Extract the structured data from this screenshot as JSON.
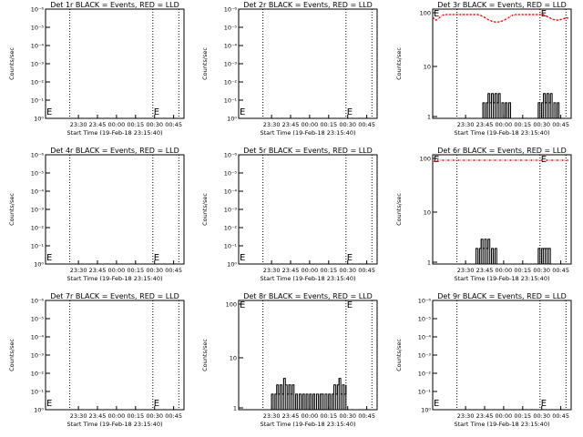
{
  "chart_data": [
    {
      "type": "line",
      "title": "Det 1r BLACK = Events, RED = LLD",
      "xlabel": "Start Time (19-Feb-18 23:15:40)",
      "ylabel": "Counts/sec",
      "yscale": "log",
      "yticks": [
        "10⁰",
        "10⁻¹",
        "10⁻²",
        "10⁻³",
        "10⁻⁴",
        "10⁻⁵",
        "10⁻⁶"
      ],
      "xticks": [
        "23:30",
        "23:45",
        "00:00",
        "00:15",
        "00:30",
        "00:45"
      ],
      "markers": [
        "E",
        "E"
      ],
      "series": []
    },
    {
      "type": "line",
      "title": "Det 2r BLACK = Events, RED = LLD",
      "xlabel": "Start Time (19-Feb-18 23:15:40)",
      "ylabel": "Counts/sec",
      "yscale": "log",
      "yticks": [
        "10⁰",
        "10⁻¹",
        "10⁻²",
        "10⁻³",
        "10⁻⁴",
        "10⁻⁵",
        "10⁻⁶"
      ],
      "xticks": [
        "23:30",
        "23:45",
        "00:00",
        "00:15",
        "00:30",
        "00:45"
      ],
      "markers": [
        "E",
        "E"
      ],
      "series": []
    },
    {
      "type": "line",
      "title": "Det 3r BLACK = Events, RED = LLD",
      "xlabel": "Start Time (19-Feb-18 23:15:40)",
      "ylabel": "Counts/sec",
      "yscale": "log",
      "yticks": [
        "100",
        "10",
        "1"
      ],
      "xticks": [
        "23:30",
        "23:45",
        "00:00",
        "00:15",
        "00:30",
        "00:45"
      ],
      "markers": [
        "E",
        "E"
      ],
      "series": [
        {
          "color": "#ff0000",
          "style": "dotted",
          "points": [
            [
              0.5,
              85
            ],
            [
              2,
              78
            ],
            [
              4,
              88
            ],
            [
              6,
              98
            ],
            [
              8,
              100
            ],
            [
              10,
              100
            ],
            [
              12,
              100
            ],
            [
              14,
              100
            ],
            [
              16,
              100
            ],
            [
              18,
              100
            ],
            [
              20,
              100
            ],
            [
              22,
              100
            ],
            [
              24,
              100
            ],
            [
              26,
              100
            ],
            [
              28,
              95
            ],
            [
              30,
              88
            ],
            [
              32,
              80
            ],
            [
              34,
              75
            ],
            [
              36,
              72
            ],
            [
              38,
              72
            ],
            [
              40,
              75
            ],
            [
              42,
              80
            ],
            [
              44,
              88
            ],
            [
              46,
              96
            ],
            [
              48,
              100
            ],
            [
              50,
              100
            ],
            [
              52,
              100
            ],
            [
              54,
              100
            ],
            [
              56,
              100
            ],
            [
              58,
              100
            ],
            [
              60,
              100
            ],
            [
              62,
              100
            ],
            [
              64,
              100
            ],
            [
              66,
              92
            ],
            [
              68,
              85
            ],
            [
              70,
              80
            ],
            [
              72,
              78
            ],
            [
              74,
              80
            ],
            [
              76,
              84
            ],
            [
              78,
              86
            ]
          ]
        },
        {
          "color": "#000000",
          "style": "solid",
          "points": [
            [
              28,
              1
            ],
            [
              29,
              2
            ],
            [
              30,
              1
            ],
            [
              31,
              2
            ],
            [
              32,
              3
            ],
            [
              33,
              2
            ],
            [
              34,
              3
            ],
            [
              35,
              2
            ],
            [
              36,
              3
            ],
            [
              37,
              2
            ],
            [
              38,
              3
            ],
            [
              39,
              1
            ],
            [
              40,
              2
            ],
            [
              41,
              1
            ],
            [
              42,
              2
            ],
            [
              43,
              1
            ],
            [
              44,
              2
            ],
            [
              45,
              1
            ],
            [
              46,
              1
            ],
            [
              61,
              2
            ],
            [
              62,
              1
            ],
            [
              63,
              2
            ],
            [
              64,
              3
            ],
            [
              65,
              2
            ],
            [
              66,
              3
            ],
            [
              67,
              2
            ],
            [
              68,
              3
            ],
            [
              69,
              1
            ],
            [
              70,
              2
            ],
            [
              71,
              1
            ],
            [
              72,
              2
            ],
            [
              73,
              1
            ]
          ]
        }
      ]
    },
    {
      "type": "line",
      "title": "Det 4r BLACK = Events, RED = LLD",
      "xlabel": "Start Time (19-Feb-18 23:15:40)",
      "ylabel": "Counts/sec",
      "yscale": "log",
      "yticks": [
        "10⁰",
        "10⁻¹",
        "10⁻²",
        "10⁻³",
        "10⁻⁴",
        "10⁻⁵",
        "10⁻⁶"
      ],
      "xticks": [
        "23:30",
        "23:45",
        "00:00",
        "00:15",
        "00:30",
        "00:45"
      ],
      "markers": [
        "E",
        "E"
      ],
      "series": []
    },
    {
      "type": "line",
      "title": "Det 5r BLACK = Events, RED = LLD",
      "xlabel": "Start Time (19-Feb-18 23:15:40)",
      "ylabel": "Counts/sec",
      "yscale": "log",
      "yticks": [
        "10⁰",
        "10⁻¹",
        "10⁻²",
        "10⁻³",
        "10⁻⁴",
        "10⁻⁵",
        "10⁻⁶"
      ],
      "xticks": [
        "23:30",
        "23:45",
        "00:00",
        "00:15",
        "00:30",
        "00:45"
      ],
      "markers": [
        "E",
        "E"
      ],
      "series": []
    },
    {
      "type": "line",
      "title": "Det 6r BLACK = Events, RED = LLD",
      "xlabel": "Start Time (19-Feb-18 23:15:40)",
      "ylabel": "Counts/sec",
      "yscale": "log",
      "yticks": [
        "100",
        "10",
        "1"
      ],
      "xticks": [
        "23:30",
        "23:45",
        "00:00",
        "00:15",
        "00:30",
        "00:45"
      ],
      "markers": [
        "E",
        "E"
      ],
      "series": [
        {
          "color": "#ff0000",
          "style": "dotted",
          "points": [
            [
              1,
              95
            ],
            [
              3,
              100
            ],
            [
              6,
              100
            ],
            [
              9,
              100
            ],
            [
              12,
              100
            ],
            [
              15,
              100
            ],
            [
              18,
              100
            ],
            [
              21,
              100
            ],
            [
              24,
              100
            ],
            [
              27,
              100
            ],
            [
              30,
              100
            ],
            [
              33,
              100
            ],
            [
              36,
              100
            ],
            [
              39,
              100
            ],
            [
              42,
              100
            ],
            [
              45,
              100
            ],
            [
              48,
              100
            ],
            [
              51,
              100
            ],
            [
              54,
              100
            ],
            [
              57,
              100
            ],
            [
              60,
              100
            ],
            [
              63,
              100
            ],
            [
              66,
              100
            ],
            [
              69,
              100
            ],
            [
              72,
              100
            ],
            [
              75,
              100
            ],
            [
              78,
              100
            ]
          ]
        },
        {
          "color": "#000000",
          "style": "solid",
          "points": [
            [
              22,
              1
            ],
            [
              24,
              1
            ],
            [
              25,
              2
            ],
            [
              26,
              1
            ],
            [
              27,
              2
            ],
            [
              28,
              3
            ],
            [
              29,
              2
            ],
            [
              30,
              3
            ],
            [
              31,
              2
            ],
            [
              32,
              3
            ],
            [
              33,
              1
            ],
            [
              34,
              2
            ],
            [
              35,
              1
            ],
            [
              36,
              2
            ],
            [
              37,
              1
            ],
            [
              38,
              1
            ],
            [
              58,
              1
            ],
            [
              60,
              1
            ],
            [
              61,
              2
            ],
            [
              62,
              1
            ],
            [
              63,
              2
            ],
            [
              64,
              2
            ],
            [
              65,
              2
            ],
            [
              66,
              2
            ],
            [
              67,
              2
            ],
            [
              68,
              1
            ],
            [
              69,
              1
            ]
          ]
        }
      ]
    },
    {
      "type": "line",
      "title": "Det 7r BLACK = Events, RED = LLD",
      "xlabel": "Start Time (19-Feb-18 23:15:40)",
      "ylabel": "Counts/sec",
      "yscale": "log",
      "yticks": [
        "10⁰",
        "10⁻¹",
        "10⁻²",
        "10⁻³",
        "10⁻⁴",
        "10⁻⁵",
        "10⁻⁶"
      ],
      "xticks": [
        "23:30",
        "23:45",
        "00:00",
        "00:15",
        "00:30",
        "00:45"
      ],
      "markers": [
        "E",
        "E"
      ],
      "series": []
    },
    {
      "type": "line",
      "title": "Det 8r BLACK = Events, RED = LLD",
      "xlabel": "Start Time (19-Feb-18 23:15:40)",
      "ylabel": "Counts/sec",
      "yscale": "log",
      "yticks": [
        "100",
        "10",
        "1"
      ],
      "xticks": [
        "23:30",
        "23:45",
        "00:00",
        "00:15",
        "00:30",
        "00:45"
      ],
      "markers": [
        "E",
        "E"
      ],
      "series": [
        {
          "color": "#000000",
          "style": "solid",
          "points": [
            [
              18,
              1
            ],
            [
              19,
              2
            ],
            [
              20,
              1
            ],
            [
              21,
              2
            ],
            [
              22,
              3
            ],
            [
              23,
              2
            ],
            [
              24,
              3
            ],
            [
              25,
              2
            ],
            [
              26,
              4
            ],
            [
              27,
              3
            ],
            [
              28,
              2
            ],
            [
              29,
              3
            ],
            [
              30,
              2
            ],
            [
              31,
              3
            ],
            [
              32,
              1
            ],
            [
              33,
              2
            ],
            [
              34,
              1
            ],
            [
              35,
              2
            ],
            [
              36,
              1
            ],
            [
              37,
              2
            ],
            [
              38,
              1
            ],
            [
              39,
              2
            ],
            [
              40,
              1
            ],
            [
              41,
              2
            ],
            [
              42,
              1
            ],
            [
              43,
              2
            ],
            [
              44,
              1
            ],
            [
              45,
              2
            ],
            [
              46,
              1
            ],
            [
              47,
              2
            ],
            [
              48,
              2
            ],
            [
              49,
              1
            ],
            [
              50,
              2
            ],
            [
              51,
              1
            ],
            [
              52,
              2
            ],
            [
              53,
              1
            ],
            [
              54,
              2
            ],
            [
              55,
              3
            ],
            [
              56,
              2
            ],
            [
              57,
              3
            ],
            [
              58,
              4
            ],
            [
              59,
              2
            ],
            [
              60,
              3
            ],
            [
              61,
              2
            ],
            [
              62,
              3
            ]
          ]
        }
      ]
    },
    {
      "type": "line",
      "title": "Det 9r BLACK = Events, RED = LLD",
      "xlabel": "Start Time (19-Feb-18 23:15:40)",
      "ylabel": "Counts/sec",
      "yscale": "log",
      "yticks": [
        "10⁰",
        "10⁻¹",
        "10⁻²",
        "10⁻³",
        "10⁻⁴",
        "10⁻⁵",
        "10⁻⁶"
      ],
      "xticks": [
        "23:30",
        "23:45",
        "00:00",
        "00:15",
        "00:30",
        "00:45"
      ],
      "markers": [
        "E",
        "E"
      ],
      "series": []
    }
  ]
}
